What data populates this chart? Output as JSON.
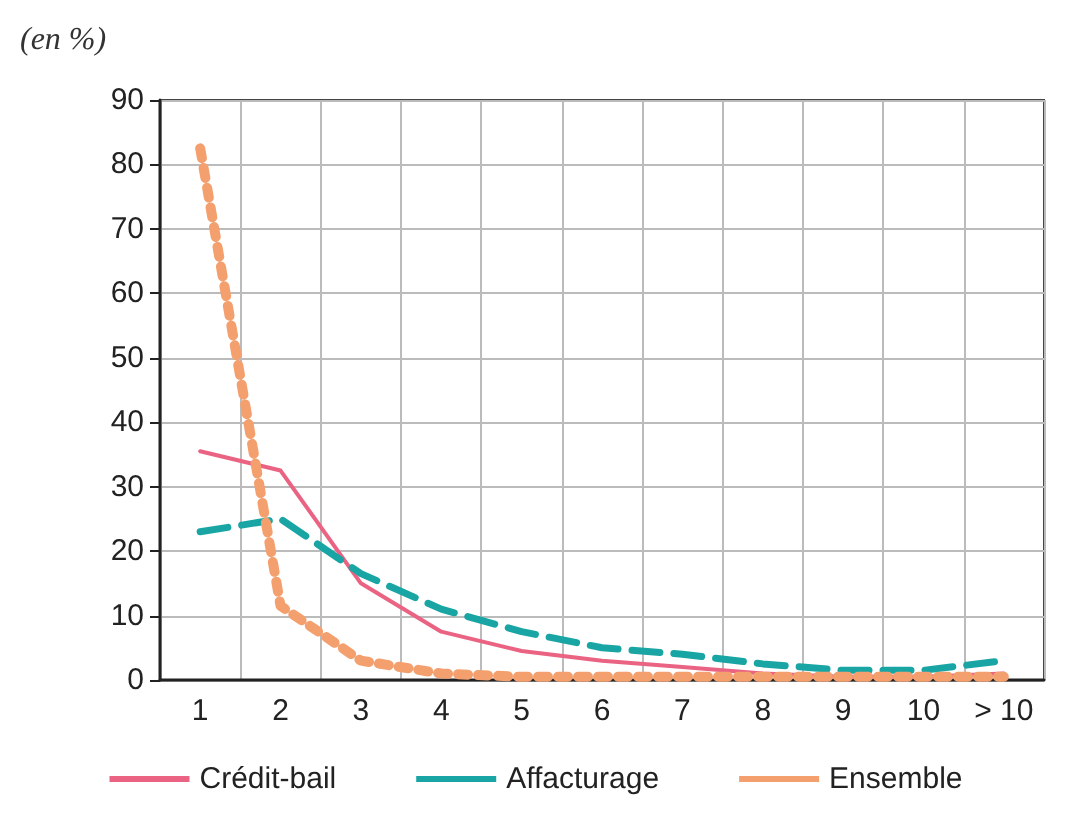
{
  "chart_data": {
    "type": "line",
    "ylabel": "(en %)",
    "categories": [
      "1",
      "2",
      "3",
      "4",
      "5",
      "6",
      "7",
      "8",
      "9",
      "10",
      "> 10"
    ],
    "series": [
      {
        "name": "Crédit-bail",
        "color": "#ea6383",
        "line_style": "solid",
        "values": [
          35.5,
          32.5,
          15,
          7.5,
          4.5,
          3,
          2,
          1,
          0.5,
          0.5,
          1
        ]
      },
      {
        "name": "Affacturage",
        "color": "#1aa5a5",
        "line_style": "dashed",
        "values": [
          23,
          25,
          16.5,
          11,
          7.5,
          5,
          4,
          2.5,
          1.5,
          1.5,
          3
        ]
      },
      {
        "name": "Ensemble",
        "color": "#f4a06e",
        "line_style": "dotted",
        "values": [
          82.5,
          11.5,
          3,
          1,
          0.5,
          0.5,
          0.5,
          0.5,
          0.5,
          0.5,
          0.5
        ]
      }
    ],
    "ylim": [
      0,
      90
    ],
    "yticks": [
      0,
      10,
      20,
      30,
      40,
      50,
      60,
      70,
      80,
      90
    ],
    "grid": true,
    "legend": "bottom",
    "marker": "none"
  }
}
